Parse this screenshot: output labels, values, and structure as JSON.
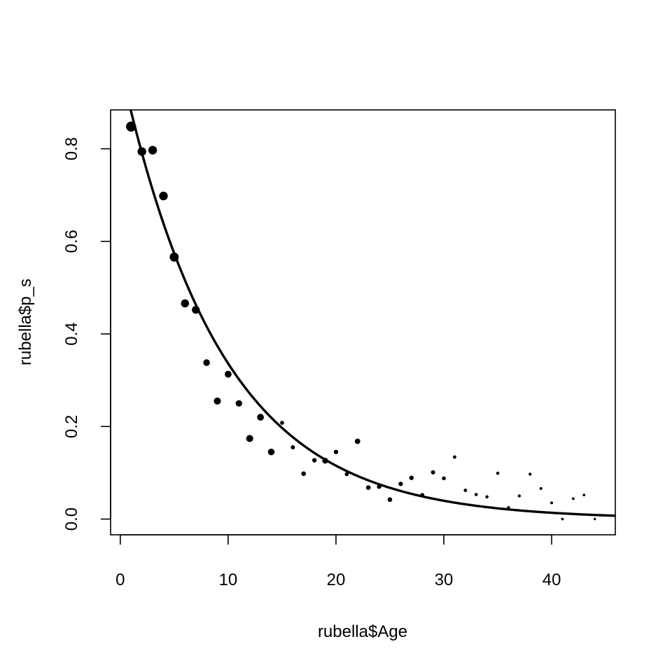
{
  "chart_data": {
    "type": "scatter",
    "title": "",
    "xlabel": "rubella$Age",
    "ylabel": "rubella$p_s",
    "xlim": [
      -0.9,
      45.9
    ],
    "ylim": [
      -0.034,
      0.884
    ],
    "xticks": [
      {
        "value": 0,
        "label": "0"
      },
      {
        "value": 10,
        "label": "10"
      },
      {
        "value": 20,
        "label": "20"
      },
      {
        "value": 30,
        "label": "30"
      },
      {
        "value": 40,
        "label": "40"
      }
    ],
    "yticks": [
      {
        "value": 0.0,
        "label": "0.0"
      },
      {
        "value": 0.2,
        "label": "0.2"
      },
      {
        "value": 0.4,
        "label": "0.4"
      },
      {
        "value": 0.6,
        "label": "0.6"
      },
      {
        "value": 0.8,
        "label": "0.8"
      }
    ],
    "grid": false,
    "legend": "none",
    "colors": {
      "points": "#000000",
      "curve": "#000000",
      "box": "#000000"
    },
    "points": {
      "x": [
        1,
        2,
        3,
        4,
        5,
        6,
        7,
        8,
        9,
        10,
        11,
        12,
        13,
        14,
        15,
        16,
        17,
        18,
        19,
        20,
        21,
        22,
        23,
        24,
        25,
        26,
        27,
        28,
        29,
        30,
        31,
        32,
        33,
        34,
        35,
        36,
        37,
        38,
        39,
        40,
        41,
        42,
        43,
        44
      ],
      "y": [
        0.848,
        0.794,
        0.797,
        0.698,
        0.566,
        0.466,
        0.452,
        0.338,
        0.255,
        0.313,
        0.25,
        0.174,
        0.22,
        0.145,
        0.208,
        0.155,
        0.098,
        0.127,
        0.126,
        0.145,
        0.097,
        0.168,
        0.068,
        0.07,
        0.042,
        0.076,
        0.089,
        0.052,
        0.101,
        0.088,
        0.134,
        0.062,
        0.053,
        0.048,
        0.099,
        0.025,
        0.05,
        0.097,
        0.066,
        0.035,
        0.0,
        0.044,
        0.052,
        0.0
      ],
      "size": [
        1.0,
        0.86,
        0.86,
        0.86,
        0.9,
        0.8,
        0.78,
        0.66,
        0.7,
        0.68,
        0.64,
        0.7,
        0.68,
        0.66,
        0.4,
        0.42,
        0.46,
        0.44,
        0.58,
        0.44,
        0.4,
        0.54,
        0.46,
        0.44,
        0.46,
        0.44,
        0.44,
        0.4,
        0.42,
        0.38,
        0.34,
        0.34,
        0.32,
        0.32,
        0.32,
        0.3,
        0.3,
        0.3,
        0.28,
        0.28,
        0.26,
        0.26,
        0.26,
        0.24
      ]
    },
    "curve": {
      "type": "exponential-fit",
      "a": 0.98,
      "k": 0.107,
      "x_range": [
        0,
        45.9
      ]
    }
  }
}
